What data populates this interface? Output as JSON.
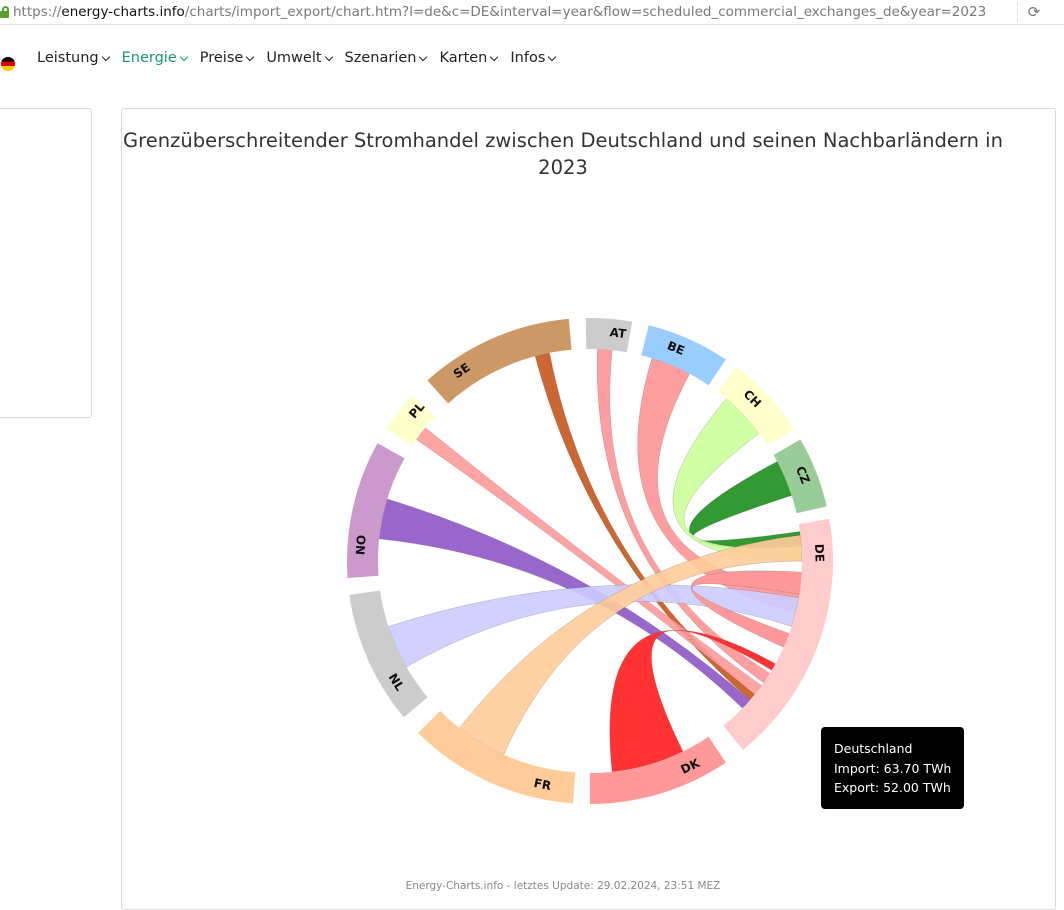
{
  "browser": {
    "url_prefix": "https://",
    "url_domain": "energy-charts.info",
    "url_path": "/charts/import_export/chart.htm?l=de&c=DE&interval=year&flow=scheduled_commercial_exchanges_de&year=2023",
    "reload_icon": "reload-icon"
  },
  "nav": {
    "flag_icon": "germany-flag-icon",
    "items": [
      {
        "label": "Leistung",
        "active": false
      },
      {
        "label": "Energie",
        "active": true
      },
      {
        "label": "Preise",
        "active": false
      },
      {
        "label": "Umwelt",
        "active": false
      },
      {
        "label": "Szenarien",
        "active": false
      },
      {
        "label": "Karten",
        "active": false
      },
      {
        "label": "Infos",
        "active": false
      }
    ],
    "active_color": "#1a9a6a"
  },
  "chart": {
    "title": "Grenzüberschreitender Stromhandel zwischen Deutschland und seinen Nachbarländern in 2023",
    "footer": "Energy-Charts.info - letztes Update: 29.02.2024, 23:51 MEZ",
    "tooltip": {
      "country": "Deutschland",
      "import_label": "Import: 63.70 TWh",
      "export_label": "Export: 52.00 TWh"
    }
  },
  "chart_data": {
    "type": "chord",
    "title": "Grenzüberschreitender Stromhandel zwischen Deutschland und seinen Nachbarländern in 2023",
    "units": "TWh",
    "groups": [
      {
        "code": "DE",
        "color": "#ffcccc"
      },
      {
        "code": "DK",
        "color": "#ff9999"
      },
      {
        "code": "FR",
        "color": "#ffcc99"
      },
      {
        "code": "NL",
        "color": "#cccccc"
      },
      {
        "code": "NO",
        "color": "#cc99cc"
      },
      {
        "code": "PL",
        "color": "#ffffcc"
      },
      {
        "code": "SE",
        "color": "#cc9966"
      },
      {
        "code": "AT",
        "color": "#cccccc"
      },
      {
        "code": "BE",
        "color": "#99ccff"
      },
      {
        "code": "CH",
        "color": "#ffffcc"
      },
      {
        "code": "CZ",
        "color": "#99cc99"
      }
    ],
    "highlight": {
      "country": "DE",
      "import": 63.7,
      "export": 52.0
    },
    "flows": [
      {
        "source": "CZ",
        "target": "DE",
        "color": "#339933",
        "opacity": 1.0
      },
      {
        "source": "CH",
        "target": "DE",
        "color": "#ccff99",
        "opacity": 0.9
      },
      {
        "source": "BE",
        "target": "DE",
        "color": "#ff9999",
        "opacity": 0.95
      },
      {
        "source": "AT",
        "target": "DE",
        "color": "#ff9999",
        "opacity": 0.95
      },
      {
        "source": "SE",
        "target": "DE",
        "color": "#cc6633",
        "opacity": 1.0
      },
      {
        "source": "PL",
        "target": "DE",
        "color": "#ff9999",
        "opacity": 0.9
      },
      {
        "source": "NO",
        "target": "DE",
        "color": "#9966cc",
        "opacity": 1.0
      },
      {
        "source": "NL",
        "target": "DE",
        "color": "#ccccff",
        "opacity": 0.9
      },
      {
        "source": "FR",
        "target": "DE",
        "color": "#ffcc99",
        "opacity": 0.9
      },
      {
        "source": "DK",
        "target": "DE",
        "color": "#ff3333",
        "opacity": 1.0
      },
      {
        "source": "DE",
        "target": "DE",
        "color": "#ff9999",
        "opacity": 1.0
      }
    ]
  }
}
